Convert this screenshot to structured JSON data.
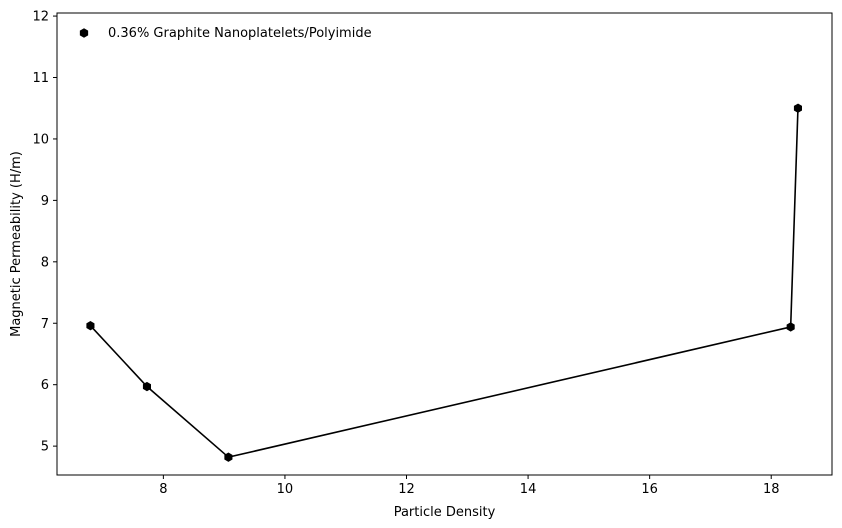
{
  "chart_data": {
    "type": "line",
    "title": "",
    "xlabel": "Particle Density",
    "ylabel": "Magnetic Permeability (H/m)",
    "xlim": [
      6.25,
      19.0
    ],
    "ylim": [
      4.53,
      12.05
    ],
    "xticks": [
      8,
      10,
      12,
      14,
      16,
      18
    ],
    "yticks": [
      5,
      6,
      7,
      8,
      9,
      10,
      11,
      12
    ],
    "grid": false,
    "legend_position": "top-left",
    "series": [
      {
        "name": "0.36% Graphite Nanoplatelets/Polyimide",
        "color": "#000000",
        "marker": "hexagon",
        "x": [
          6.8,
          7.73,
          9.07,
          18.32,
          18.44
        ],
        "y": [
          6.96,
          5.97,
          4.82,
          6.94,
          10.5
        ]
      }
    ]
  }
}
